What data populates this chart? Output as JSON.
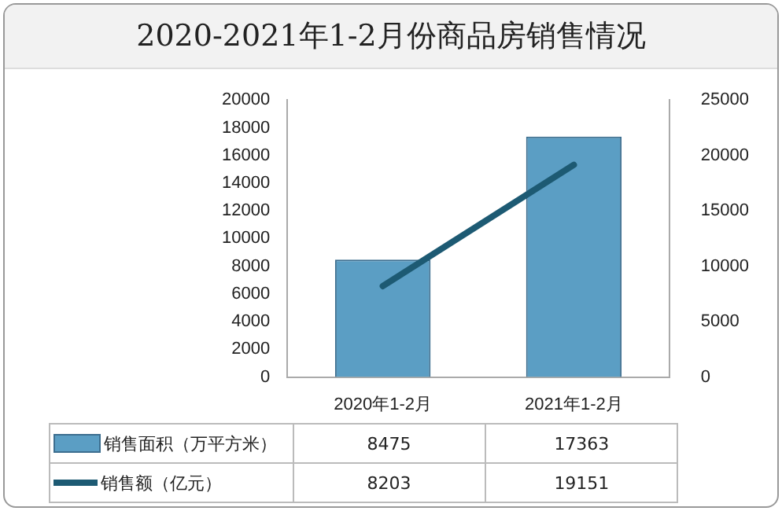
{
  "chart_data": {
    "type": "bar",
    "title": "2020-2021年1-2月份商品房销售情况",
    "categories": [
      "2020年1-2月",
      "2021年1-2月"
    ],
    "series": [
      {
        "name": "销售面积（万平方米）",
        "color": "#5b9ec4",
        "values": [
          8475,
          17363
        ]
      },
      {
        "name": "销售额（亿元）",
        "type": "line",
        "axis": "y2",
        "color": "#1d5a73",
        "values": [
          8203,
          19151
        ]
      }
    ],
    "ylim": [
      0,
      20000
    ],
    "yticks": [
      0,
      2000,
      4000,
      6000,
      8000,
      10000,
      12000,
      14000,
      16000,
      18000,
      20000
    ],
    "y2lim": [
      0,
      25000
    ],
    "y2ticks": [
      0,
      5000,
      10000,
      15000,
      20000,
      25000
    ],
    "grid": false,
    "legend": "bottom",
    "data_labels": true,
    "marker": "none"
  }
}
